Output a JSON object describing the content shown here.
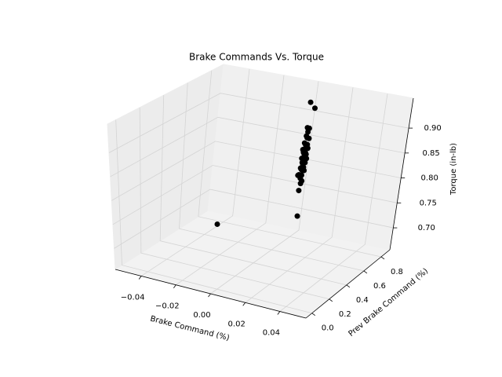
{
  "chart_data": {
    "type": "scatter3d",
    "title": "Brake Commands Vs. Torque",
    "xlabel": "Brake Command (%)",
    "ylabel": "Prev Brake Command (%)",
    "zlabel": "Torque (in-lb)",
    "color": "#000000",
    "grid": true,
    "xlim": [
      -0.055,
      0.055
    ],
    "ylim": [
      -0.07,
      0.9
    ],
    "zlim": [
      0.656,
      0.96
    ],
    "xticks": [
      {
        "value": -0.04,
        "label": "−0.04"
      },
      {
        "value": -0.02,
        "label": "−0.02"
      },
      {
        "value": 0,
        "label": "0.00"
      },
      0.02,
      0.04
    ],
    "yticks": [
      {
        "value": 0,
        "label": "0.0"
      },
      0.2,
      0.4,
      0.6,
      0.8
    ],
    "zticks": [
      {
        "value": 0.7,
        "label": "0.70"
      },
      0.75,
      {
        "value": 0.8,
        "label": "0.80"
      },
      0.85,
      {
        "value": 0.9,
        "label": "0.90"
      }
    ],
    "x": [
      0,
      0,
      0,
      0,
      0,
      0,
      0,
      0,
      0,
      0,
      0,
      0,
      0,
      0,
      0,
      0,
      0,
      0,
      0,
      0,
      0,
      0,
      0,
      0,
      0,
      0,
      0,
      0,
      0,
      0,
      0,
      0,
      0,
      0,
      0,
      0,
      0,
      0,
      0,
      0,
      0
    ],
    "y": [
      0.85,
      0.9,
      0.85,
      0.87,
      0.86,
      0.85,
      0.86,
      0.88,
      0.84,
      0.85,
      0.87,
      0.86,
      0.83,
      0.85,
      0.88,
      0.84,
      0.86,
      0.85,
      0.87,
      0.83,
      0.86,
      0.85,
      0.88,
      0.84,
      0.86,
      0.87,
      0.85,
      0.83,
      0.86,
      0.84,
      0.85,
      0.87,
      0.82,
      0.81,
      0.85,
      0.84,
      0.86,
      0.85,
      0.84,
      0.86,
      0
    ],
    "z": [
      0.924,
      0.905,
      0.872,
      0.868,
      0.862,
      0.855,
      0.85,
      0.846,
      0.842,
      0.838,
      0.835,
      0.832,
      0.83,
      0.828,
      0.826,
      0.823,
      0.82,
      0.818,
      0.815,
      0.812,
      0.81,
      0.807,
      0.805,
      0.802,
      0.8,
      0.798,
      0.795,
      0.792,
      0.79,
      0.788,
      0.785,
      0.782,
      0.78,
      0.78,
      0.775,
      0.77,
      0.762,
      0.758,
      0.745,
      0.69,
      0.79
    ]
  }
}
